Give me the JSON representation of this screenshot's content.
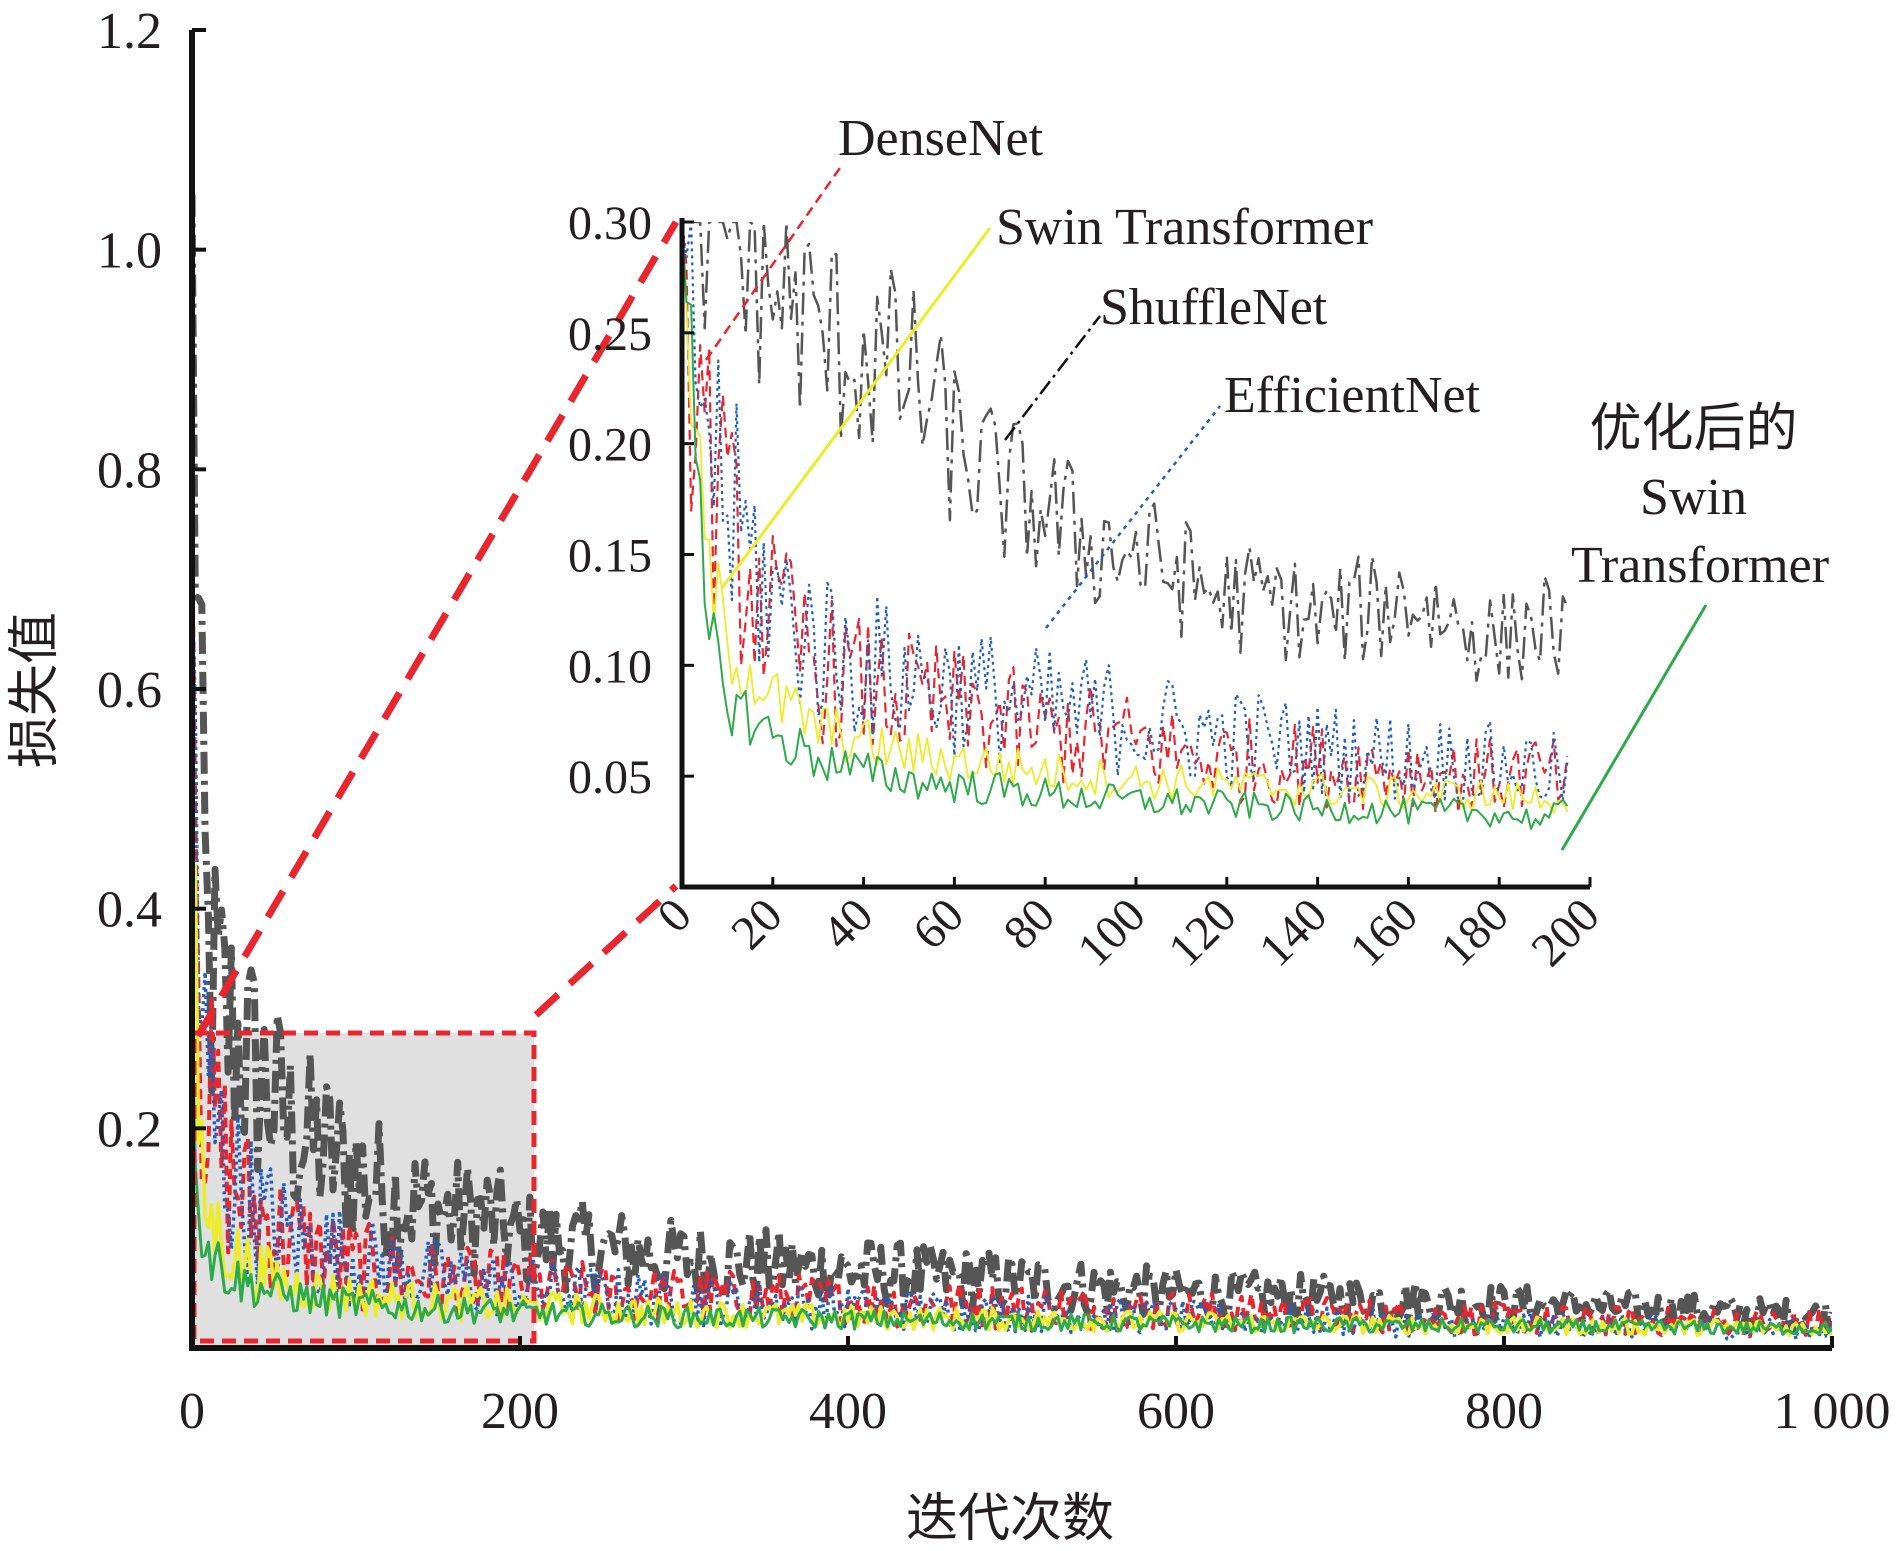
{
  "chart_data": [
    {
      "type": "line",
      "xlabel": "迭代次数",
      "ylabel": "损失值",
      "xlim": [
        0,
        1000
      ],
      "ylim": [
        0,
        1.2
      ],
      "x_ticks": [
        "0",
        "200",
        "400",
        "600",
        "800",
        "1 000"
      ],
      "y_ticks": [
        "0.2",
        "0.4",
        "0.6",
        "0.8",
        "1.0",
        "1.2"
      ],
      "zoom_region": {
        "x": [
          0,
          210
        ],
        "y": [
          0,
          0.3
        ]
      },
      "series": [
        {
          "key": "shufflenet",
          "color": "#555555",
          "dash": "dashdot",
          "x": [
            0,
            5,
            10,
            20,
            30,
            40,
            60,
            80,
            100,
            120,
            140,
            160,
            180,
            200,
            250,
            300,
            350,
            400,
            450,
            500,
            550,
            600,
            650,
            700,
            750,
            800,
            850,
            900,
            950,
            1000
          ],
          "y": [
            1.05,
            0.5,
            0.34,
            0.3,
            0.27,
            0.25,
            0.2,
            0.18,
            0.16,
            0.14,
            0.13,
            0.12,
            0.12,
            0.1,
            0.09,
            0.08,
            0.075,
            0.07,
            0.065,
            0.06,
            0.055,
            0.05,
            0.048,
            0.045,
            0.043,
            0.04,
            0.038,
            0.035,
            0.032,
            0.03
          ]
        },
        {
          "key": "densenet",
          "color": "#e8262d",
          "dash": "dashed",
          "x": [
            0,
            5,
            10,
            20,
            30,
            40,
            60,
            80,
            100,
            120,
            140,
            160,
            180,
            200,
            250,
            300,
            350,
            400,
            450,
            500,
            550,
            600,
            650,
            700,
            750,
            800,
            850,
            900,
            950,
            1000
          ],
          "y": [
            0.76,
            0.3,
            0.22,
            0.17,
            0.14,
            0.12,
            0.1,
            0.085,
            0.075,
            0.07,
            0.065,
            0.06,
            0.058,
            0.055,
            0.05,
            0.047,
            0.045,
            0.042,
            0.04,
            0.038,
            0.036,
            0.034,
            0.032,
            0.03,
            0.028,
            0.026,
            0.025,
            0.024,
            0.023,
            0.022
          ]
        },
        {
          "key": "efficientnet",
          "color": "#1f5fbf",
          "dash": "dotted",
          "x": [
            0,
            5,
            10,
            20,
            30,
            40,
            60,
            80,
            100,
            120,
            140,
            160,
            180,
            200,
            250,
            300,
            350,
            400,
            450,
            500,
            550,
            600,
            650,
            700,
            750,
            800,
            850,
            900,
            950,
            1000
          ],
          "y": [
            0.7,
            0.3,
            0.22,
            0.17,
            0.14,
            0.12,
            0.1,
            0.09,
            0.08,
            0.072,
            0.066,
            0.062,
            0.058,
            0.055,
            0.048,
            0.044,
            0.04,
            0.037,
            0.034,
            0.032,
            0.03,
            0.028,
            0.026,
            0.024,
            0.022,
            0.021,
            0.02,
            0.019,
            0.018,
            0.017
          ]
        },
        {
          "key": "swin",
          "color": "#ecec2a",
          "dash": "solid",
          "x": [
            0,
            5,
            10,
            20,
            30,
            40,
            60,
            80,
            100,
            120,
            140,
            160,
            180,
            200,
            250,
            300,
            350,
            400,
            450,
            500,
            550,
            600,
            650,
            700,
            750,
            800,
            850,
            900,
            950,
            1000
          ],
          "y": [
            0.43,
            0.16,
            0.12,
            0.095,
            0.08,
            0.07,
            0.058,
            0.052,
            0.048,
            0.045,
            0.043,
            0.041,
            0.04,
            0.038,
            0.035,
            0.032,
            0.03,
            0.028,
            0.027,
            0.026,
            0.025,
            0.024,
            0.023,
            0.022,
            0.021,
            0.02,
            0.02,
            0.019,
            0.019,
            0.018
          ]
        },
        {
          "key": "opt_swin",
          "color": "#2daa4a",
          "dash": "solid",
          "x": [
            0,
            5,
            10,
            20,
            30,
            40,
            60,
            80,
            100,
            120,
            140,
            160,
            180,
            200,
            250,
            300,
            350,
            400,
            450,
            500,
            550,
            600,
            650,
            700,
            750,
            800,
            850,
            900,
            950,
            1000
          ],
          "y": [
            0.3,
            0.12,
            0.09,
            0.07,
            0.06,
            0.055,
            0.048,
            0.043,
            0.04,
            0.038,
            0.036,
            0.035,
            0.034,
            0.032,
            0.03,
            0.028,
            0.027,
            0.026,
            0.025,
            0.024,
            0.023,
            0.022,
            0.021,
            0.021,
            0.02,
            0.02,
            0.019,
            0.019,
            0.018,
            0.018
          ]
        }
      ]
    },
    {
      "type": "line",
      "xlim": [
        0,
        200
      ],
      "ylim": [
        0,
        0.3
      ],
      "x_ticks": [
        "0",
        "20",
        "40",
        "60",
        "80",
        "100",
        "120",
        "140",
        "160",
        "180",
        "200"
      ],
      "y_ticks": [
        "0.05",
        "0.10",
        "0.15",
        "0.20",
        "0.25",
        "0.30"
      ],
      "series": [
        {
          "key": "shufflenet",
          "name": "ShuffleNet",
          "color": "#555555",
          "dash": "dashdot",
          "x": [
            0,
            5,
            10,
            20,
            30,
            40,
            50,
            60,
            70,
            80,
            90,
            100,
            110,
            120,
            130,
            140,
            150,
            160,
            170,
            180,
            190,
            195
          ],
          "y": [
            0.3,
            0.3,
            0.3,
            0.27,
            0.25,
            0.24,
            0.23,
            0.2,
            0.18,
            0.17,
            0.155,
            0.15,
            0.14,
            0.13,
            0.13,
            0.12,
            0.125,
            0.13,
            0.12,
            0.11,
            0.12,
            0.11
          ]
        },
        {
          "key": "densenet",
          "name": "DenseNet",
          "color": "#e8262d",
          "dash": "dashed",
          "x": [
            0,
            5,
            10,
            20,
            30,
            40,
            50,
            60,
            70,
            80,
            90,
            100,
            110,
            120,
            130,
            140,
            150,
            160,
            170,
            180,
            190,
            195
          ],
          "y": [
            0.3,
            0.2,
            0.16,
            0.12,
            0.1,
            0.09,
            0.085,
            0.08,
            0.075,
            0.07,
            0.068,
            0.065,
            0.06,
            0.058,
            0.056,
            0.055,
            0.054,
            0.053,
            0.05,
            0.05,
            0.052,
            0.045
          ]
        },
        {
          "key": "efficientnet",
          "name": "EfficientNet",
          "color": "#1f5fbf",
          "dash": "dotted",
          "x": [
            0,
            5,
            10,
            20,
            30,
            40,
            50,
            60,
            70,
            80,
            90,
            100,
            110,
            120,
            130,
            140,
            150,
            160,
            170,
            180,
            190,
            195
          ],
          "y": [
            0.3,
            0.22,
            0.17,
            0.13,
            0.11,
            0.1,
            0.095,
            0.09,
            0.085,
            0.08,
            0.078,
            0.075,
            0.07,
            0.068,
            0.065,
            0.062,
            0.06,
            0.058,
            0.057,
            0.055,
            0.053,
            0.05
          ]
        },
        {
          "key": "swin",
          "name": "Swin Transformer",
          "color": "#ecec2a",
          "dash": "solid",
          "x": [
            0,
            5,
            10,
            20,
            30,
            40,
            50,
            60,
            70,
            80,
            90,
            100,
            110,
            120,
            130,
            140,
            150,
            160,
            170,
            180,
            190,
            195
          ],
          "y": [
            0.29,
            0.15,
            0.11,
            0.085,
            0.072,
            0.065,
            0.06,
            0.057,
            0.055,
            0.052,
            0.05,
            0.048,
            0.047,
            0.046,
            0.045,
            0.044,
            0.043,
            0.042,
            0.042,
            0.041,
            0.04,
            0.04
          ]
        },
        {
          "key": "opt_swin",
          "name": "优化后的 Swin Transformer",
          "color": "#2daa4a",
          "dash": "solid",
          "x": [
            0,
            5,
            10,
            20,
            30,
            40,
            50,
            60,
            70,
            80,
            90,
            100,
            110,
            120,
            130,
            140,
            150,
            160,
            170,
            180,
            190,
            195
          ],
          "y": [
            0.3,
            0.12,
            0.085,
            0.068,
            0.058,
            0.052,
            0.048,
            0.046,
            0.044,
            0.042,
            0.04,
            0.039,
            0.038,
            0.037,
            0.036,
            0.035,
            0.035,
            0.034,
            0.034,
            0.033,
            0.03,
            0.035
          ]
        }
      ]
    }
  ]
}
